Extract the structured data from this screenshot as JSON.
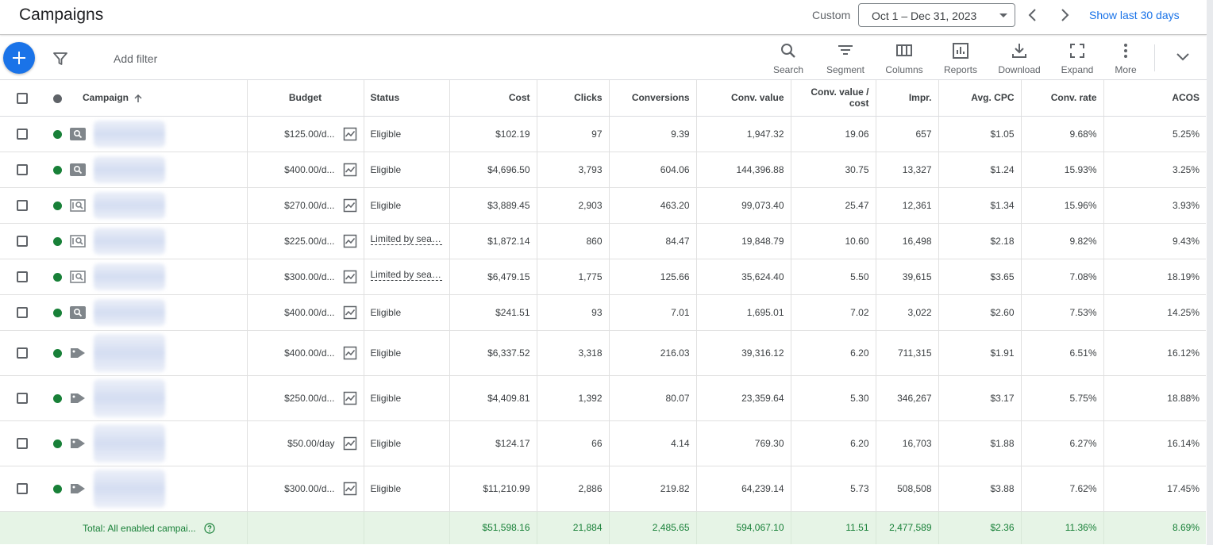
{
  "header": {
    "title": "Campaigns",
    "custom_label": "Custom",
    "date_range": "Oct 1 – Dec 31, 2023",
    "show_last": "Show last 30 days"
  },
  "toolbar": {
    "add_filter": "Add filter",
    "tools": [
      {
        "label": "Search",
        "icon": "search-icon"
      },
      {
        "label": "Segment",
        "icon": "segment-icon"
      },
      {
        "label": "Columns",
        "icon": "columns-icon"
      },
      {
        "label": "Reports",
        "icon": "reports-icon"
      },
      {
        "label": "Download",
        "icon": "download-icon"
      },
      {
        "label": "Expand",
        "icon": "expand-icon"
      },
      {
        "label": "More",
        "icon": "more-vert-icon"
      }
    ]
  },
  "table": {
    "columns": [
      "Campaign",
      "Budget",
      "Status",
      "Cost",
      "Clicks",
      "Conversions",
      "Conv. value",
      "Conv. value / cost",
      "Impr.",
      "Avg. CPC",
      "Conv. rate",
      "ACOS"
    ],
    "rows": [
      {
        "type": "search",
        "budget": "$125.00/d...",
        "status": "Eligible",
        "cost": "$102.19",
        "clicks": "97",
        "conversions": "9.39",
        "conv_value": "1,947.32",
        "conv_value_cost": "19.06",
        "impr": "657",
        "avg_cpc": "$1.05",
        "conv_rate": "9.68%",
        "acos": "5.25%"
      },
      {
        "type": "search",
        "budget": "$400.00/d...",
        "status": "Eligible",
        "cost": "$4,696.50",
        "clicks": "3,793",
        "conversions": "604.06",
        "conv_value": "144,396.88",
        "conv_value_cost": "30.75",
        "impr": "13,327",
        "avg_cpc": "$1.24",
        "conv_rate": "15.93%",
        "acos": "3.25%"
      },
      {
        "type": "dsa",
        "budget": "$270.00/d...",
        "status": "Eligible",
        "cost": "$3,889.45",
        "clicks": "2,903",
        "conversions": "463.20",
        "conv_value": "99,073.40",
        "conv_value_cost": "25.47",
        "impr": "12,361",
        "avg_cpc": "$1.34",
        "conv_rate": "15.96%",
        "acos": "3.93%"
      },
      {
        "type": "dsa",
        "budget": "$225.00/d...",
        "status": "Limited by sear...",
        "cost": "$1,872.14",
        "clicks": "860",
        "conversions": "84.47",
        "conv_value": "19,848.79",
        "conv_value_cost": "10.60",
        "impr": "16,498",
        "avg_cpc": "$2.18",
        "conv_rate": "9.82%",
        "acos": "9.43%"
      },
      {
        "type": "dsa",
        "budget": "$300.00/d...",
        "status": "Limited by sear...",
        "cost": "$6,479.15",
        "clicks": "1,775",
        "conversions": "125.66",
        "conv_value": "35,624.40",
        "conv_value_cost": "5.50",
        "impr": "39,615",
        "avg_cpc": "$3.65",
        "conv_rate": "7.08%",
        "acos": "18.19%"
      },
      {
        "type": "search",
        "budget": "$400.00/d...",
        "status": "Eligible",
        "cost": "$241.51",
        "clicks": "93",
        "conversions": "7.01",
        "conv_value": "1,695.01",
        "conv_value_cost": "7.02",
        "impr": "3,022",
        "avg_cpc": "$2.60",
        "conv_rate": "7.53%",
        "acos": "14.25%"
      },
      {
        "type": "shopping",
        "budget": "$400.00/d...",
        "status": "Eligible",
        "cost": "$6,337.52",
        "clicks": "3,318",
        "conversions": "216.03",
        "conv_value": "39,316.12",
        "conv_value_cost": "6.20",
        "impr": "711,315",
        "avg_cpc": "$1.91",
        "conv_rate": "6.51%",
        "acos": "16.12%"
      },
      {
        "type": "shopping",
        "budget": "$250.00/d...",
        "status": "Eligible",
        "cost": "$4,409.81",
        "clicks": "1,392",
        "conversions": "80.07",
        "conv_value": "23,359.64",
        "conv_value_cost": "5.30",
        "impr": "346,267",
        "avg_cpc": "$3.17",
        "conv_rate": "5.75%",
        "acos": "18.88%"
      },
      {
        "type": "shopping",
        "budget": "$50.00/day",
        "status": "Eligible",
        "cost": "$124.17",
        "clicks": "66",
        "conversions": "4.14",
        "conv_value": "769.30",
        "conv_value_cost": "6.20",
        "impr": "16,703",
        "avg_cpc": "$1.88",
        "conv_rate": "6.27%",
        "acos": "16.14%"
      },
      {
        "type": "shopping",
        "budget": "$300.00/d...",
        "status": "Eligible",
        "cost": "$11,210.99",
        "clicks": "2,886",
        "conversions": "219.82",
        "conv_value": "64,239.14",
        "conv_value_cost": "5.73",
        "impr": "508,508",
        "avg_cpc": "$3.88",
        "conv_rate": "7.62%",
        "acos": "17.45%"
      }
    ],
    "total": {
      "label": "Total: All enabled campai...",
      "cost": "$51,598.16",
      "clicks": "21,884",
      "conversions": "2,485.65",
      "conv_value": "594,067.10",
      "conv_value_cost": "11.51",
      "impr": "2,477,589",
      "avg_cpc": "$2.36",
      "conv_rate": "11.36%",
      "acos": "8.69%"
    }
  },
  "colors": {
    "accent": "#1a73e8",
    "enabled": "#188038",
    "total_bg": "#e6f4e6"
  }
}
